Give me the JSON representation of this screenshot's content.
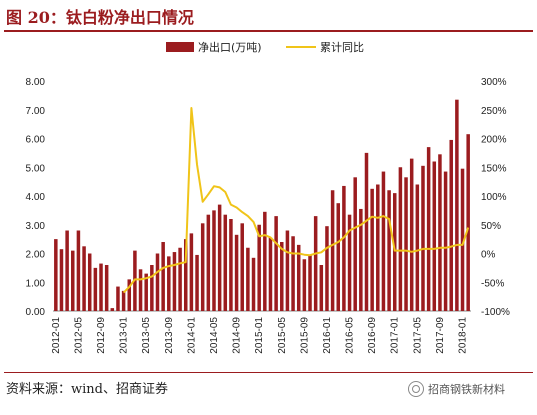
{
  "header": {
    "title": "图 20：钛白粉净出口情况"
  },
  "footer": {
    "source": "资料来源：wind、招商证券",
    "watermark": "招商钢铁新材料"
  },
  "colors": {
    "bar": "#9b1c1f",
    "line": "#f0c419",
    "accent": "#9b1c1f"
  },
  "chart_data": {
    "type": "bar",
    "title": "",
    "legend_position": "top-center",
    "grid": false,
    "categories": [
      "2012-01",
      "2012-02",
      "2012-03",
      "2012-04",
      "2012-05",
      "2012-06",
      "2012-07",
      "2012-08",
      "2012-09",
      "2012-10",
      "2012-11",
      "2012-12",
      "2013-01",
      "2013-02",
      "2013-03",
      "2013-04",
      "2013-05",
      "2013-06",
      "2013-07",
      "2013-08",
      "2013-09",
      "2013-10",
      "2013-11",
      "2013-12",
      "2014-01",
      "2014-02",
      "2014-03",
      "2014-04",
      "2014-05",
      "2014-06",
      "2014-07",
      "2014-08",
      "2014-09",
      "2014-10",
      "2014-11",
      "2014-12",
      "2015-01",
      "2015-02",
      "2015-03",
      "2015-04",
      "2015-05",
      "2015-06",
      "2015-07",
      "2015-08",
      "2015-09",
      "2015-10",
      "2015-11",
      "2015-12",
      "2016-01",
      "2016-02",
      "2016-03",
      "2016-04",
      "2016-05",
      "2016-06",
      "2016-07",
      "2016-08",
      "2016-09",
      "2016-10",
      "2016-11",
      "2016-12",
      "2017-01",
      "2017-02",
      "2017-03",
      "2017-04",
      "2017-05",
      "2017-06",
      "2017-07",
      "2017-08",
      "2017-09",
      "2017-10",
      "2017-11",
      "2017-12",
      "2018-01",
      "2018-02"
    ],
    "x_tick_labels": [
      "2012-01",
      "2012-05",
      "2012-09",
      "2013-01",
      "2013-05",
      "2013-09",
      "2014-01",
      "2014-05",
      "2014-09",
      "2015-01",
      "2015-05",
      "2015-09",
      "2016-01",
      "2016-05",
      "2016-09",
      "2017-01",
      "2017-05",
      "2017-09",
      "2018-01"
    ],
    "y_left": {
      "ticks": [
        "0.00",
        "1.00",
        "2.00",
        "3.00",
        "4.00",
        "5.00",
        "6.00",
        "7.00",
        "8.00"
      ],
      "ylim": [
        0,
        8
      ]
    },
    "y_right": {
      "ticks": [
        "-100%",
        "-50%",
        "0%",
        "50%",
        "100%",
        "150%",
        "200%",
        "250%",
        "300%"
      ],
      "ylim": [
        -100,
        300
      ]
    },
    "series": [
      {
        "name": "净出口(万吨)",
        "type": "bar",
        "axis": "left",
        "values": [
          2.5,
          2.15,
          2.8,
          2.1,
          2.8,
          2.25,
          2.0,
          1.5,
          1.65,
          1.6,
          0.1,
          0.85,
          0.7,
          1.1,
          2.1,
          1.45,
          1.3,
          1.6,
          2.0,
          2.4,
          1.9,
          2.05,
          2.2,
          2.5,
          2.7,
          1.95,
          3.05,
          3.35,
          3.5,
          3.7,
          3.35,
          3.2,
          2.65,
          3.05,
          2.2,
          1.85,
          3.0,
          3.45,
          2.55,
          3.3,
          2.4,
          2.8,
          2.6,
          2.3,
          1.8,
          1.95,
          3.3,
          1.6,
          2.95,
          4.2,
          3.75,
          4.35,
          3.35,
          4.65,
          3.55,
          5.5,
          4.25,
          4.4,
          4.85,
          4.2,
          4.1,
          5.0,
          4.65,
          5.3,
          4.4,
          5.05,
          5.7,
          5.2,
          5.45,
          4.85,
          5.95,
          7.35,
          4.95,
          6.15
        ]
      },
      {
        "name": "累计同比",
        "type": "line",
        "axis": "right",
        "values": [
          null,
          null,
          null,
          null,
          null,
          null,
          null,
          null,
          null,
          null,
          null,
          null,
          -68,
          -58,
          -45,
          -45,
          -43,
          -40,
          -32,
          -25,
          -22,
          -20,
          -17,
          -15,
          253,
          155,
          90,
          103,
          117,
          115,
          107,
          85,
          80,
          72,
          65,
          55,
          30,
          32,
          28,
          18,
          8,
          2,
          0,
          0,
          -2,
          -3,
          0,
          2,
          10,
          15,
          20,
          28,
          40,
          45,
          50,
          57,
          64,
          62,
          65,
          60,
          5,
          5,
          5,
          3,
          5,
          8,
          8,
          8,
          10,
          10,
          12,
          15,
          15,
          45
        ]
      }
    ]
  }
}
